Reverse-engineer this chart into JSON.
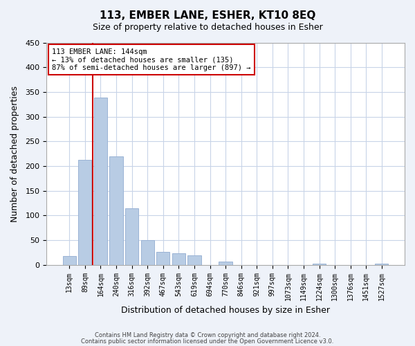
{
  "title": "113, EMBER LANE, ESHER, KT10 8EQ",
  "subtitle": "Size of property relative to detached houses in Esher",
  "xlabel": "Distribution of detached houses by size in Esher",
  "ylabel": "Number of detached properties",
  "bar_labels": [
    "13sqm",
    "89sqm",
    "164sqm",
    "240sqm",
    "316sqm",
    "392sqm",
    "467sqm",
    "543sqm",
    "619sqm",
    "694sqm",
    "770sqm",
    "846sqm",
    "921sqm",
    "997sqm",
    "1073sqm",
    "1149sqm",
    "1224sqm",
    "1300sqm",
    "1376sqm",
    "1451sqm",
    "1527sqm"
  ],
  "bar_values": [
    18,
    213,
    338,
    220,
    114,
    50,
    26,
    24,
    19,
    0,
    7,
    0,
    0,
    0,
    0,
    0,
    2,
    0,
    0,
    0,
    2
  ],
  "bar_color": "#b8cce4",
  "bar_edge_color": "#9ab3d5",
  "vline_x": 1.5,
  "vline_color": "#cc0000",
  "ylim": [
    0,
    450
  ],
  "yticks": [
    0,
    50,
    100,
    150,
    200,
    250,
    300,
    350,
    400,
    450
  ],
  "annotation_title": "113 EMBER LANE: 144sqm",
  "annotation_line1": "← 13% of detached houses are smaller (135)",
  "annotation_line2": "87% of semi-detached houses are larger (897) →",
  "annotation_box_color": "#cc0000",
  "footer_line1": "Contains HM Land Registry data © Crown copyright and database right 2024.",
  "footer_line2": "Contains public sector information licensed under the Open Government Licence v3.0.",
  "bg_color": "#eef2f9",
  "plot_bg_color": "#ffffff",
  "grid_color": "#c8d4e8"
}
